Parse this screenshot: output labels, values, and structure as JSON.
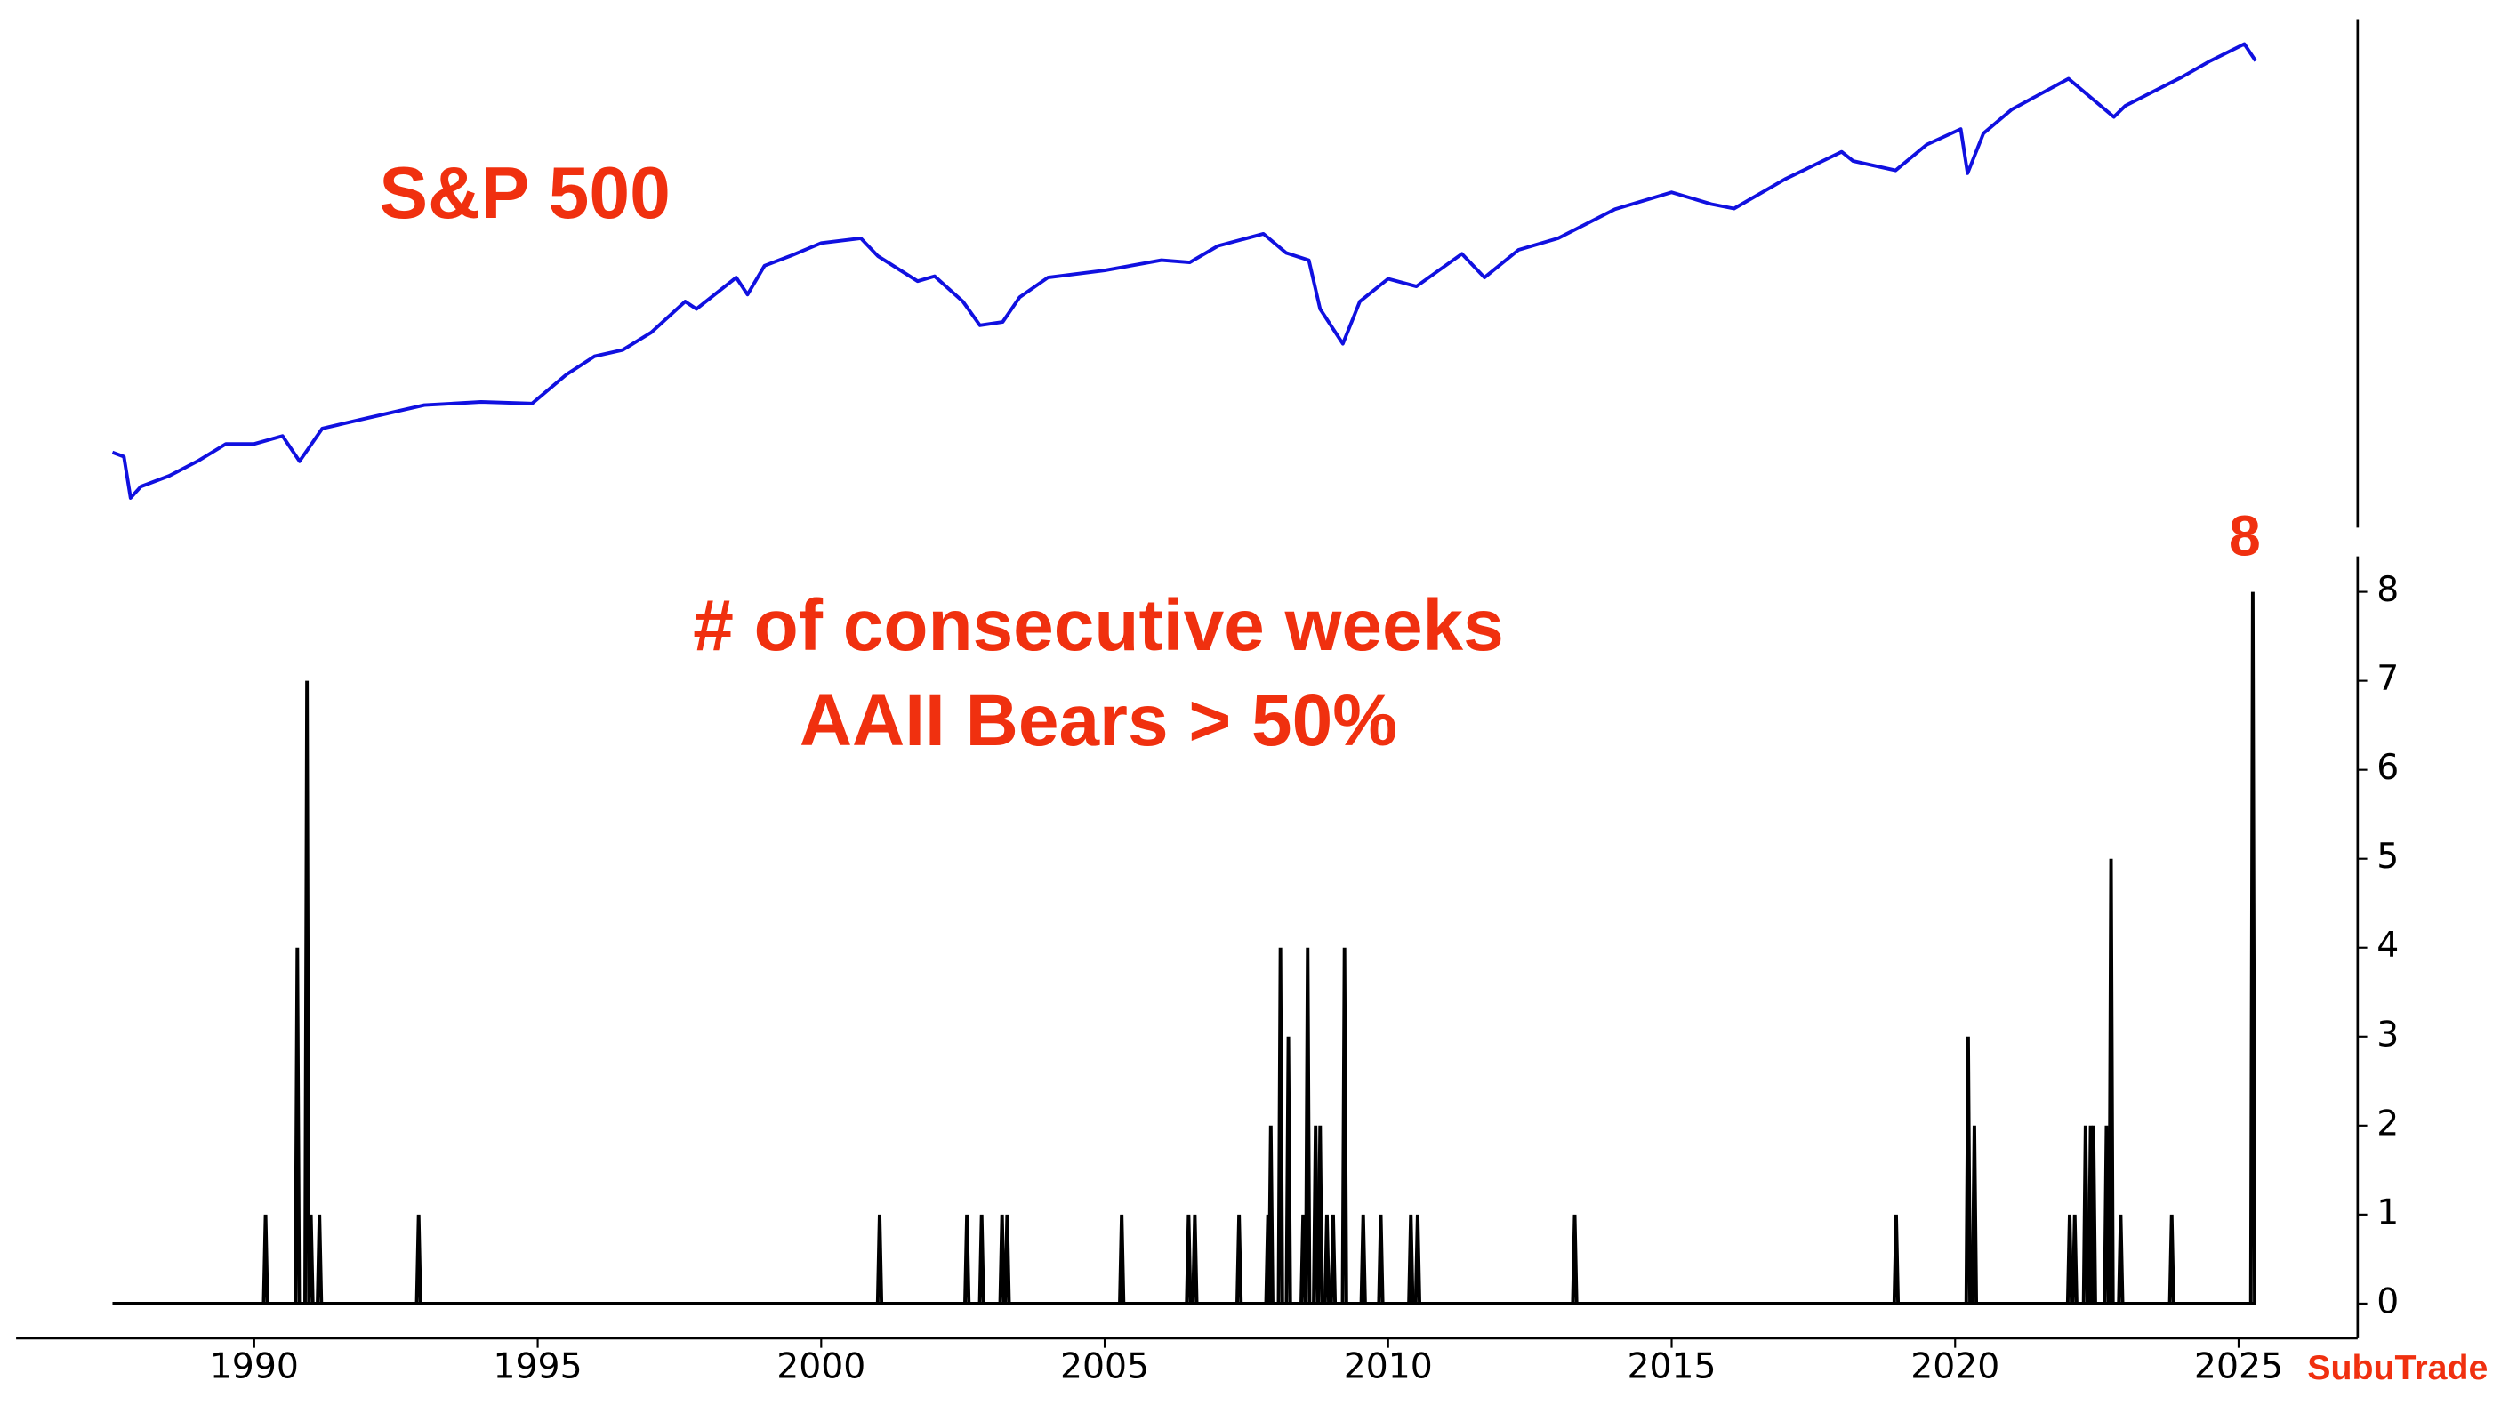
{
  "chart_data": [
    {
      "type": "line",
      "title": "S&P 500",
      "log_scale": true,
      "color": "#1010e0",
      "x": [
        1987.5,
        1987.7,
        1987.82,
        1988.0,
        1988.5,
        1989.0,
        1989.5,
        1990.0,
        1990.5,
        1990.8,
        1991.2,
        1992.0,
        1993.0,
        1994.0,
        1994.9,
        1995.5,
        1996.0,
        1996.5,
        1997.0,
        1997.6,
        1997.8,
        1998.5,
        1998.7,
        1999.0,
        1999.5,
        2000.0,
        2000.7,
        2001.0,
        2001.7,
        2002.0,
        2002.5,
        2002.8,
        2003.2,
        2003.5,
        2004.0,
        2005.0,
        2006.0,
        2006.5,
        2007.0,
        2007.8,
        2008.2,
        2008.6,
        2008.8,
        2009.2,
        2009.5,
        2010.0,
        2010.5,
        2011.3,
        2011.7,
        2012.3,
        2013.0,
        2014.0,
        2015.0,
        2015.7,
        2016.1,
        2017.0,
        2018.0,
        2018.2,
        2018.95,
        2019.5,
        2020.1,
        2020.22,
        2020.5,
        2021.0,
        2022.0,
        2022.8,
        2023.0,
        2024.0,
        2024.5,
        2025.1,
        2025.3
      ],
      "values": [
        320,
        310,
        230,
        250,
        270,
        300,
        340,
        340,
        360,
        300,
        380,
        410,
        450,
        460,
        455,
        560,
        640,
        670,
        760,
        950,
        900,
        1130,
        1000,
        1230,
        1330,
        1450,
        1500,
        1320,
        1100,
        1140,
        950,
        800,
        820,
        980,
        1130,
        1190,
        1280,
        1260,
        1420,
        1550,
        1350,
        1280,
        900,
        700,
        950,
        1120,
        1060,
        1340,
        1130,
        1380,
        1500,
        1850,
        2090,
        1920,
        1860,
        2300,
        2800,
        2620,
        2450,
        2950,
        3300,
        2400,
        3200,
        3800,
        4750,
        3600,
        3900,
        4800,
        5400,
        6100,
        5400
      ],
      "ylim": [
        190,
        7300
      ]
    },
    {
      "type": "line",
      "title": "# of consecutive weeks\nAAII Bears > 50%",
      "annotation": "8",
      "watermark": "SubuTrade",
      "color": "#000000",
      "x": [
        1990.2,
        1990.76,
        1990.93,
        1991.0,
        1991.15,
        1992.9,
        2001.03,
        2002.57,
        2002.83,
        2003.19,
        2003.28,
        2005.3,
        2006.48,
        2006.59,
        2007.37,
        2007.88,
        2007.93,
        2008.1,
        2008.24,
        2008.5,
        2008.58,
        2008.72,
        2008.8,
        2008.92,
        2009.03,
        2009.23,
        2009.56,
        2009.87,
        2010.4,
        2010.52,
        2013.29,
        2018.96,
        2020.23,
        2020.34,
        2022.02,
        2022.11,
        2022.3,
        2022.39,
        2022.44,
        2022.67,
        2022.75,
        2022.92,
        2023.82,
        2025.25
      ],
      "values": [
        1,
        4,
        7,
        1,
        1,
        1,
        1,
        1,
        1,
        1,
        1,
        1,
        1,
        1,
        1,
        1,
        2,
        4,
        3,
        1,
        4,
        2,
        2,
        1,
        1,
        4,
        1,
        1,
        1,
        1,
        1,
        1,
        3,
        2,
        1,
        1,
        2,
        2,
        2,
        2,
        5,
        1,
        1,
        8
      ],
      "xlim": [
        1985.8,
        2027.1
      ],
      "xticks": [
        1990,
        1995,
        2000,
        2005,
        2010,
        2015,
        2020,
        2025
      ],
      "ylim": [
        -0.39,
        8.4
      ],
      "yticks": [
        0,
        1,
        2,
        3,
        4,
        5,
        6,
        7,
        8
      ]
    }
  ]
}
